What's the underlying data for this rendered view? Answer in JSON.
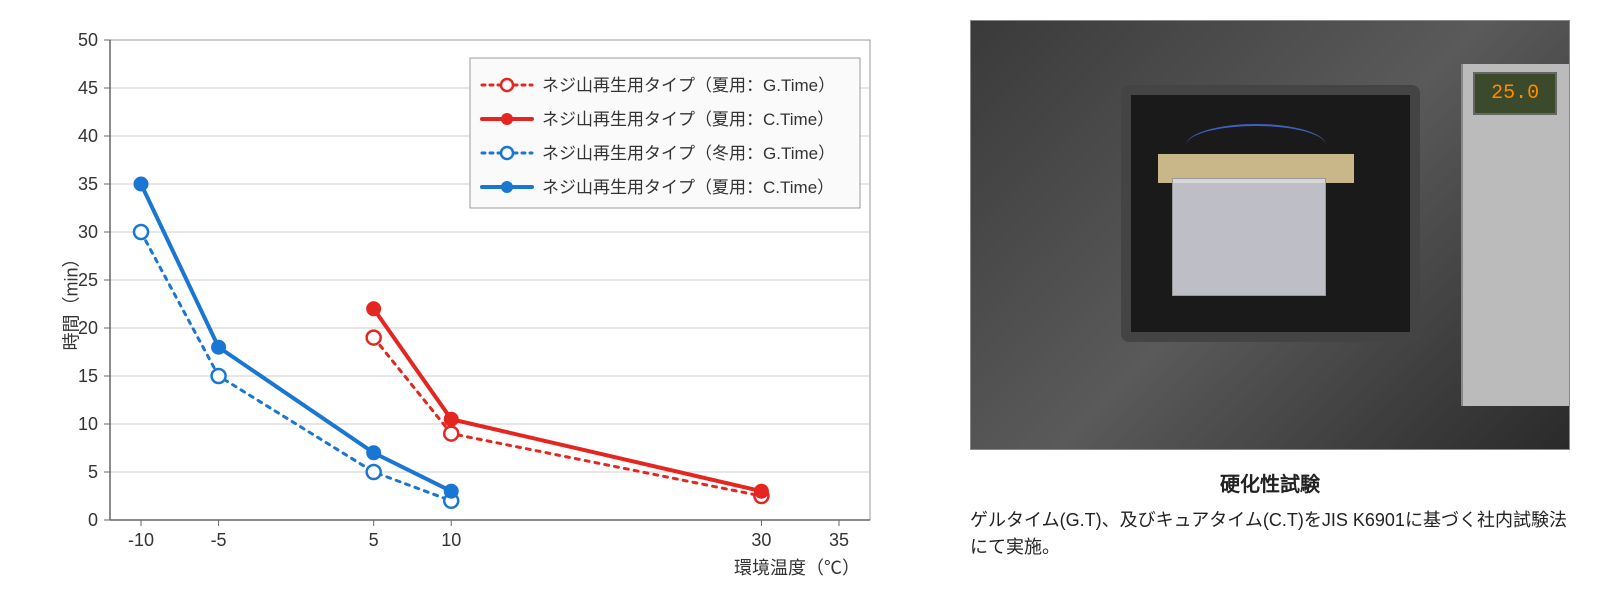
{
  "chart": {
    "type": "line",
    "y_axis_label": "時間（min）",
    "x_axis_label": "環境温度（℃）",
    "xlim": [
      -12,
      37
    ],
    "ylim": [
      0,
      50
    ],
    "xtick_values": [
      -10,
      -5,
      5,
      10,
      30,
      35
    ],
    "ytick_values": [
      0,
      5,
      10,
      15,
      20,
      25,
      30,
      35,
      40,
      45,
      50
    ],
    "grid_color": "#cccccc",
    "axis_color": "#666666",
    "background_color": "#ffffff",
    "tick_fontsize": 18,
    "label_fontsize": 18,
    "plot_border_color": "#999999",
    "series": [
      {
        "id": "summer_gtime",
        "label": "ネジ山再生用タイプ（夏用：G.Time）",
        "color": "#e52620",
        "line_style": "dotted",
        "line_width": 3,
        "marker": "open-circle",
        "marker_size": 7,
        "x": [
          5,
          10,
          30
        ],
        "y": [
          19,
          9,
          2.5
        ]
      },
      {
        "id": "summer_ctime",
        "label": "ネジ山再生用タイプ（夏用：C.Time）",
        "color": "#e52620",
        "line_style": "solid",
        "line_width": 4,
        "marker": "filled-circle",
        "marker_size": 7,
        "x": [
          5,
          10,
          30
        ],
        "y": [
          22,
          10.5,
          3
        ]
      },
      {
        "id": "winter_gtime",
        "label": "ネジ山再生用タイプ（冬用：G.Time）",
        "color": "#1976d2",
        "line_style": "dotted",
        "line_width": 3,
        "marker": "open-circle",
        "marker_size": 7,
        "x": [
          -10,
          -5,
          5,
          10
        ],
        "y": [
          30,
          15,
          5,
          2
        ]
      },
      {
        "id": "winter_ctime",
        "label": "ネジ山再生用タイプ（夏用：C.Time）",
        "color": "#1976d2",
        "line_style": "solid",
        "line_width": 4,
        "marker": "filled-circle",
        "marker_size": 7,
        "x": [
          -10,
          -5,
          5,
          10
        ],
        "y": [
          35,
          18,
          7,
          3
        ]
      }
    ],
    "legend": {
      "position": "top-right",
      "border_color": "#999999",
      "background_color": "#fafafa",
      "fontsize": 17
    }
  },
  "photo": {
    "caption": "硬化性試験",
    "description": "ゲルタイム(G.T)、及びキュアタイム(C.T)をJIS K6901に基づく社内試験法にて実施。",
    "display_value": "25.0"
  }
}
